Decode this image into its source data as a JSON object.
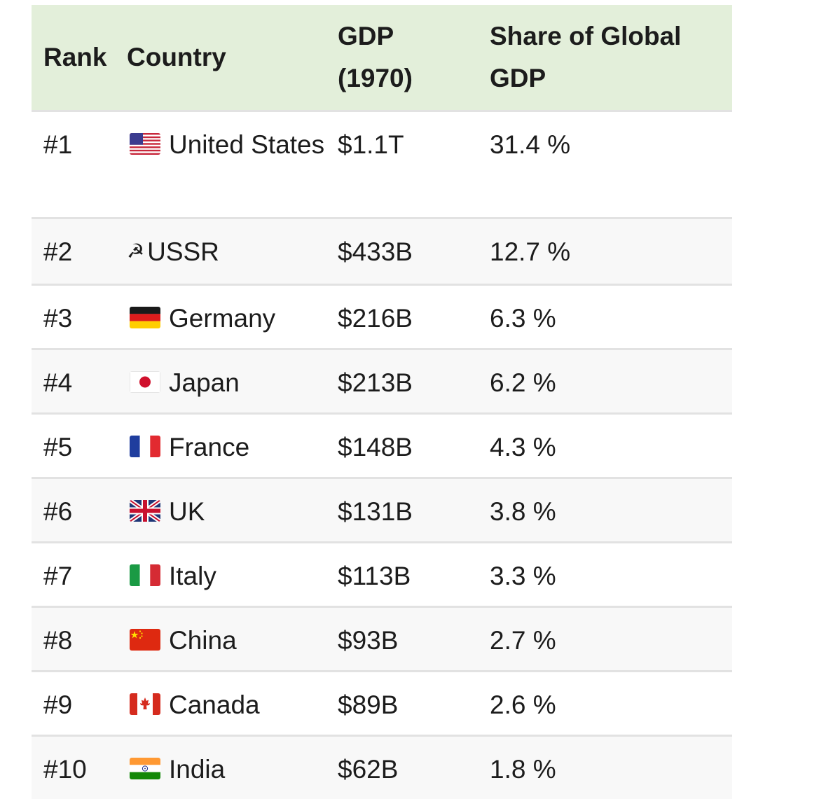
{
  "table": {
    "headers": {
      "rank": "Rank",
      "country": "Country",
      "gdp_line1": "GDP",
      "gdp_line2": "(1970)",
      "share_line1": "Share of Global",
      "share_line2": "GDP"
    },
    "rows": [
      {
        "rank": "#1",
        "flag": "us-flag-icon",
        "country": "United States",
        "gdp": "$1.1T",
        "share": "31.4 %"
      },
      {
        "rank": "#2",
        "flag": "hammer-sickle-icon",
        "country": "USSR",
        "gdp": "$433B",
        "share": "12.7 %"
      },
      {
        "rank": "#3",
        "flag": "germany-flag-icon",
        "country": "Germany",
        "gdp": "$216B",
        "share": "6.3 %"
      },
      {
        "rank": "#4",
        "flag": "japan-flag-icon",
        "country": "Japan",
        "gdp": "$213B",
        "share": "6.2 %"
      },
      {
        "rank": "#5",
        "flag": "france-flag-icon",
        "country": "France",
        "gdp": "$148B",
        "share": "4.3 %"
      },
      {
        "rank": "#6",
        "flag": "uk-flag-icon",
        "country": "UK",
        "gdp": "$131B",
        "share": "3.8 %"
      },
      {
        "rank": "#7",
        "flag": "italy-flag-icon",
        "country": "Italy",
        "gdp": "$113B",
        "share": "3.3 %"
      },
      {
        "rank": "#8",
        "flag": "china-flag-icon",
        "country": "China",
        "gdp": "$93B",
        "share": "2.7 %"
      },
      {
        "rank": "#9",
        "flag": "canada-flag-icon",
        "country": "Canada",
        "gdp": "$89B",
        "share": "2.6 %"
      },
      {
        "rank": "#10",
        "flag": "india-flag-icon",
        "country": "India",
        "gdp": "$62B",
        "share": "1.8 %"
      }
    ]
  },
  "colors": {
    "header_bg": "#e3efda",
    "row_alt_bg": "#f8f8f8",
    "divider": "#e2e2e2"
  }
}
